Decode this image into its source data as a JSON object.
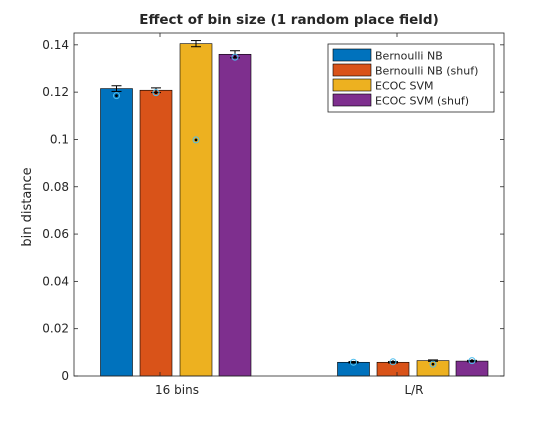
{
  "chart_data": {
    "type": "bar",
    "title": "Effect of bin size (1 random place field)",
    "xlabel": "",
    "ylabel": "bin distance",
    "ylim": [
      0,
      0.145
    ],
    "yticks": [
      0,
      0.02,
      0.04,
      0.06,
      0.08,
      0.1,
      0.12,
      0.14
    ],
    "ytick_labels": [
      "0",
      "0.02",
      "0.04",
      "0.06",
      "0.08",
      "0.1",
      "0.12",
      "0.14"
    ],
    "categories": [
      "16 bins",
      "L/R"
    ],
    "grid": false,
    "legend_position": "top-right",
    "series": [
      {
        "name": "Bernoulli NB",
        "color": "#0072BD",
        "values": [
          0.1215,
          0.0058
        ],
        "errors": [
          0.0012,
          0.0003
        ],
        "marker": [
          0.1185,
          0.0058
        ]
      },
      {
        "name": "Bernoulli NB (shuf)",
        "color": "#D95319",
        "values": [
          0.1208,
          0.0058
        ],
        "errors": [
          0.001,
          0.0003
        ],
        "marker": [
          0.1198,
          0.006
        ]
      },
      {
        "name": "ECOC SVM",
        "color": "#EDB120",
        "values": [
          0.1405,
          0.0065
        ],
        "errors": [
          0.0013,
          0.0003
        ],
        "marker": [
          0.0998,
          0.005
        ]
      },
      {
        "name": "ECOC SVM (shuf)",
        "color": "#7E2F8E",
        "values": [
          0.136,
          0.0063
        ],
        "errors": [
          0.0015,
          0.0003
        ],
        "marker": [
          0.1348,
          0.0065
        ]
      }
    ]
  }
}
